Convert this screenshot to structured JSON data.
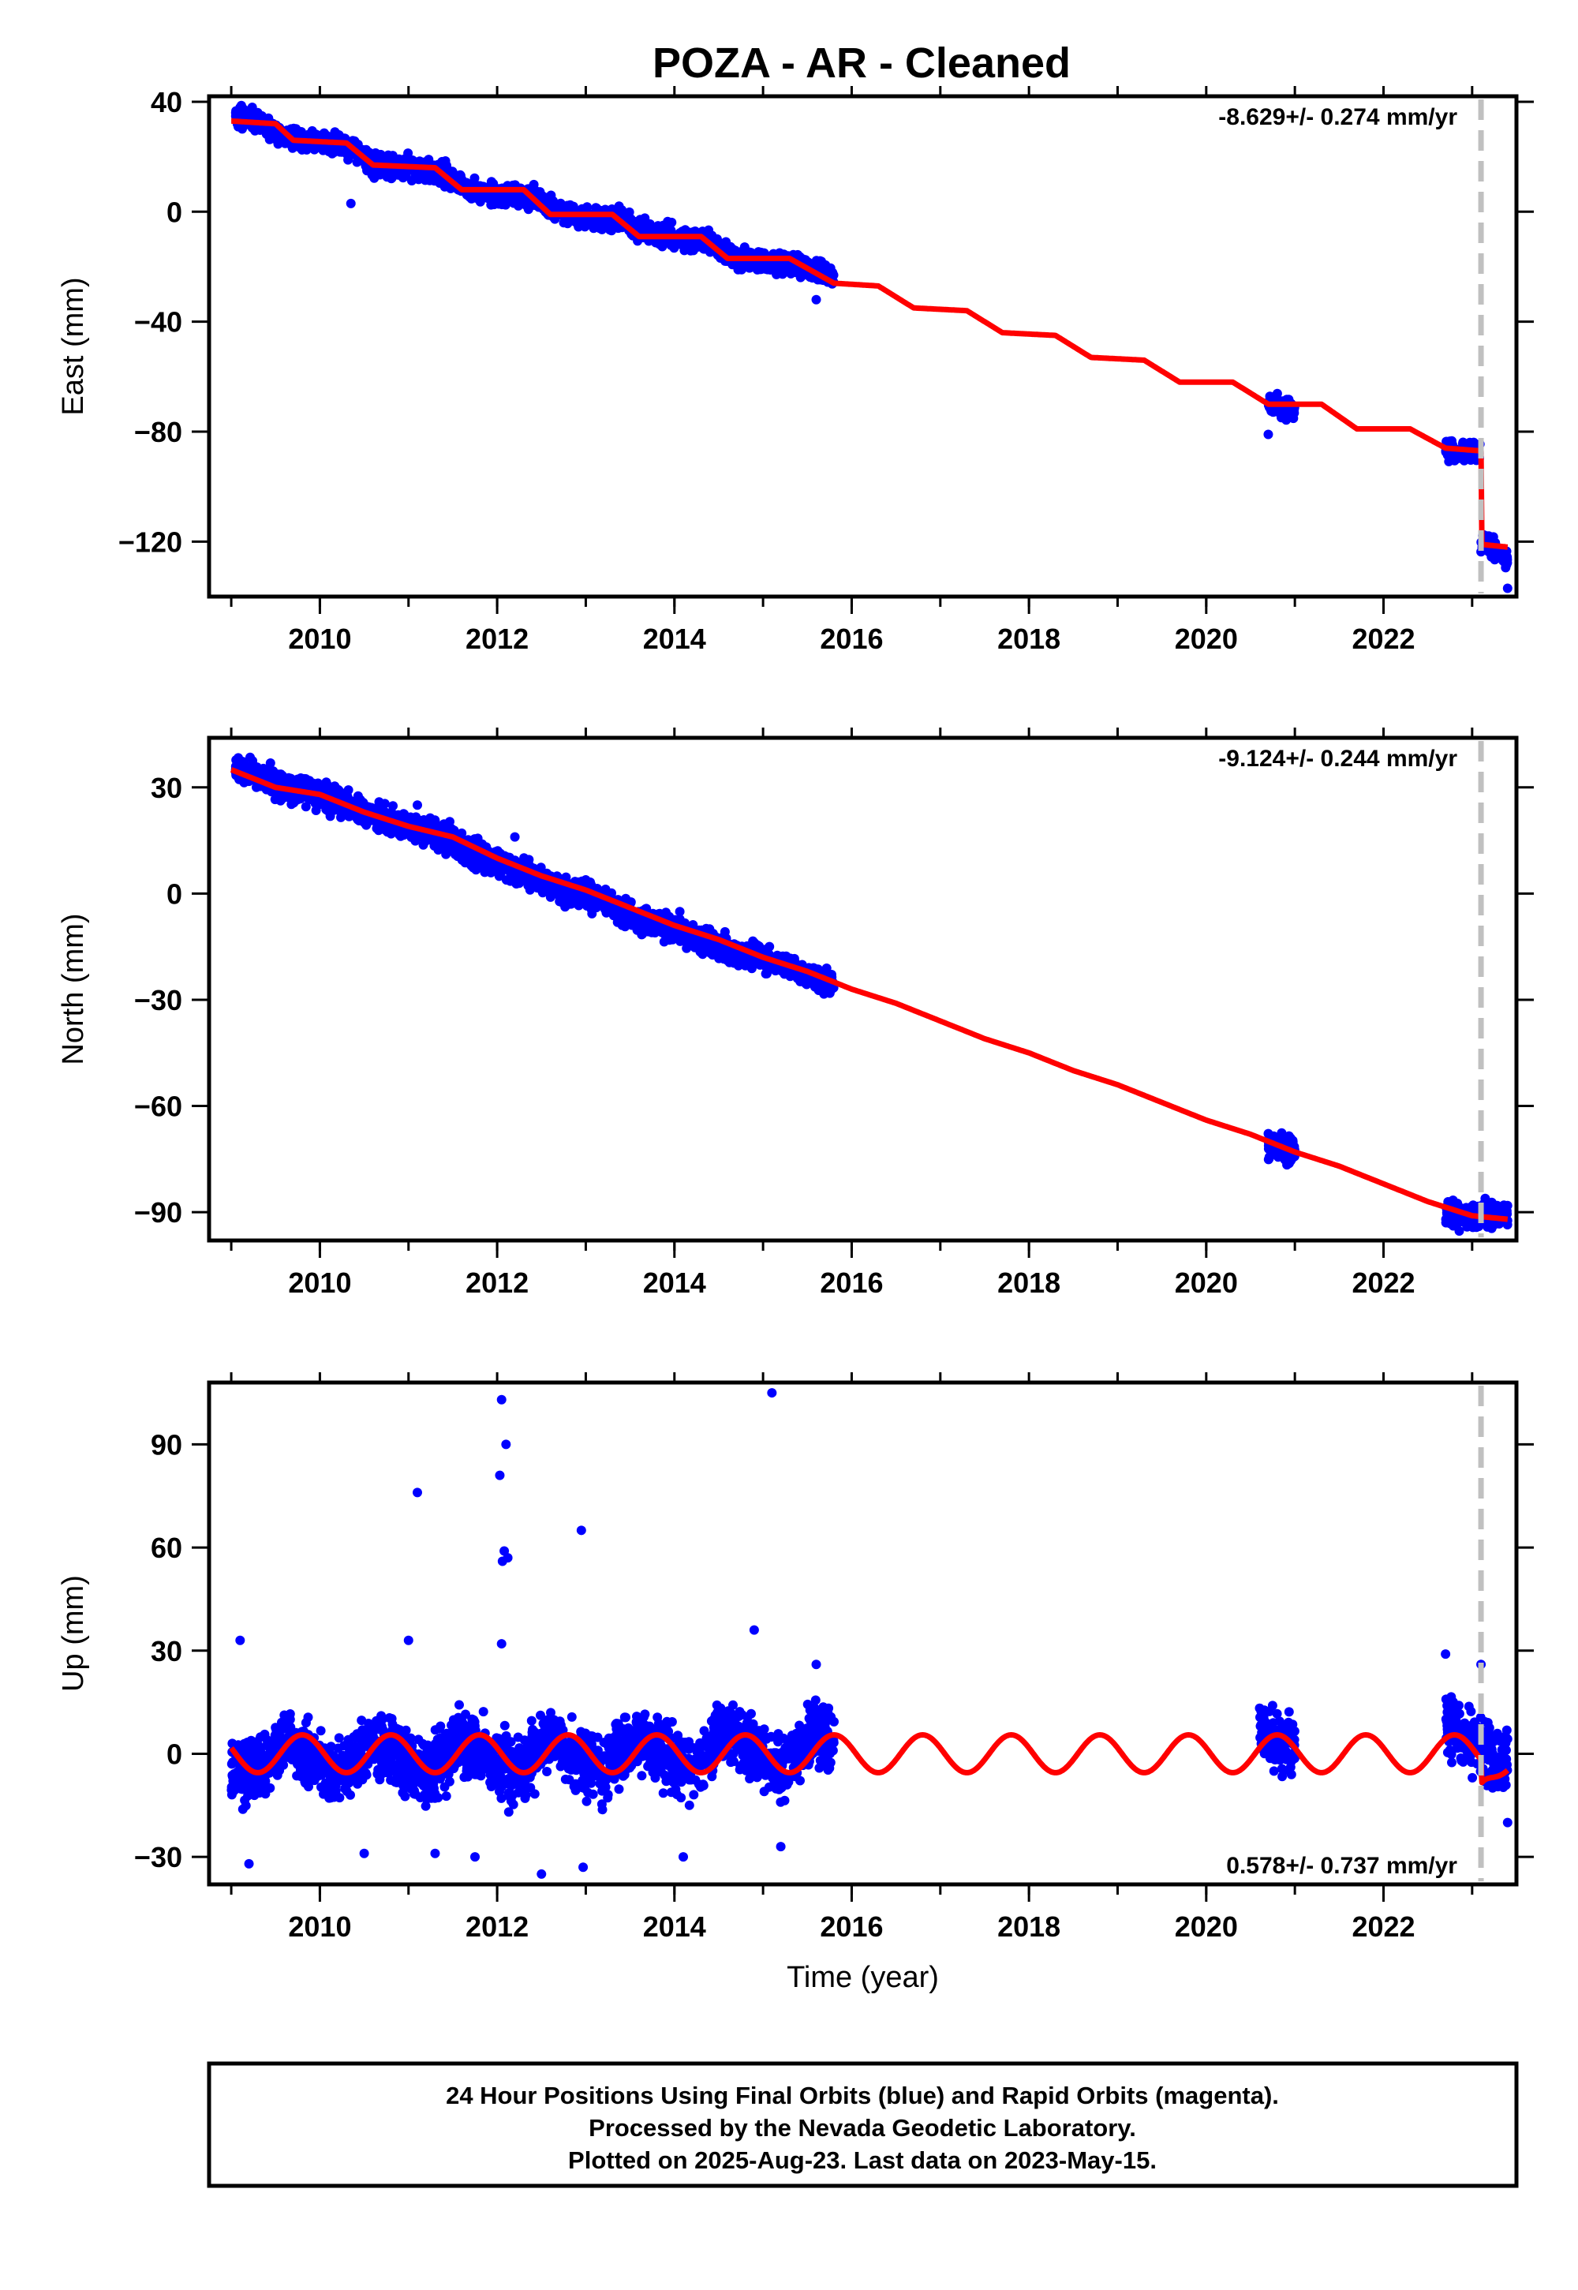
{
  "figure": {
    "title": "POZA  - AR - Cleaned",
    "footer": [
      "24 Hour Positions Using Final Orbits (blue) and Rapid Orbits (magenta).",
      "Processed by the Nevada Geodetic Laboratory.",
      "Plotted on 2025-Aug-23. Last data on 2023-May-15."
    ],
    "colors": {
      "data": "#0000ff",
      "model": "#ff0000",
      "event_line": "#c0c0c0",
      "frame": "#000000"
    }
  },
  "chart_data": [
    {
      "type": "scatter",
      "ylabel": "East (mm)",
      "xlabel": "",
      "xlim": [
        2008.75,
        2023.5
      ],
      "ylim": [
        -140,
        42
      ],
      "xticks": [
        2010,
        2012,
        2014,
        2016,
        2018,
        2020,
        2022
      ],
      "yticks": [
        40,
        0,
        -40,
        -80,
        -120
      ],
      "rate_label": "-8.629+/- 0.274 mm/yr",
      "event_line_x": 2023.1,
      "data_segments": [
        {
          "x": [
            2009.05,
            2009.3,
            2009.6,
            2010.0,
            2010.3,
            2010.6,
            2011.0,
            2011.4,
            2011.7,
            2012.0,
            2012.4,
            2012.7,
            2013.0,
            2013.4,
            2013.7,
            2014.0,
            2014.4,
            2014.7,
            2015.0,
            2015.4,
            2015.8
          ],
          "y": [
            35,
            33,
            27,
            25,
            24,
            17,
            16,
            14,
            8,
            6,
            5,
            0,
            -2,
            -3,
            -8,
            -9,
            -11,
            -17,
            -18,
            -19,
            -24
          ]
        },
        {
          "x": [
            2020.7,
            2020.8,
            2020.9,
            2021.0
          ],
          "y": [
            -70,
            -70,
            -72,
            -72
          ]
        },
        {
          "x": [
            2022.7,
            2022.8,
            2022.9,
            2023.0,
            2023.1
          ],
          "y": [
            -86,
            -88,
            -87,
            -88,
            -88
          ]
        },
        {
          "x": [
            2023.1,
            2023.2,
            2023.3,
            2023.4
          ],
          "y": [
            -120,
            -122,
            -124,
            -126
          ]
        }
      ],
      "outliers": [
        {
          "x": 2010.35,
          "y": 3
        },
        {
          "x": 2015.6,
          "y": -32
        },
        {
          "x": 2020.7,
          "y": -81
        },
        {
          "x": 2023.4,
          "y": -137
        }
      ],
      "model": {
        "x": [
          2009.0,
          2009.5,
          2009.7,
          2010.3,
          2010.6,
          2011.3,
          2011.6,
          2012.3,
          2012.6,
          2013.3,
          2013.6,
          2014.3,
          2014.6,
          2015.3,
          2015.8,
          2016.3,
          2016.7,
          2017.3,
          2017.7,
          2018.3,
          2018.7,
          2019.3,
          2019.7,
          2020.3,
          2020.7,
          2021.3,
          2021.7,
          2022.3,
          2022.7,
          2023.1,
          2023.1,
          2023.4
        ],
        "y": [
          33,
          32,
          26,
          25,
          17,
          16,
          8,
          8,
          -1,
          -1,
          -9,
          -9,
          -17,
          -17,
          -26,
          -27,
          -35,
          -36,
          -44,
          -45,
          -53,
          -54,
          -62,
          -62,
          -70,
          -70,
          -79,
          -79,
          -86,
          -87,
          -121,
          -122
        ]
      }
    },
    {
      "type": "scatter",
      "ylabel": "North (mm)",
      "xlabel": "",
      "xlim": [
        2008.75,
        2023.5
      ],
      "ylim": [
        -98,
        44
      ],
      "xticks": [
        2010,
        2012,
        2014,
        2016,
        2018,
        2020,
        2022
      ],
      "yticks": [
        30,
        0,
        -30,
        -60,
        -90
      ],
      "rate_label": "-9.124+/- 0.244 mm/yr",
      "event_line_x": 2023.1,
      "data_segments": [
        {
          "x": [
            2009.05,
            2009.3,
            2009.6,
            2010.0,
            2010.3,
            2010.6,
            2011.0,
            2011.4,
            2011.7,
            2012.0,
            2012.4,
            2012.7,
            2013.0,
            2013.4,
            2013.7,
            2014.0,
            2014.4,
            2014.7,
            2015.0,
            2015.4,
            2015.8
          ],
          "y": [
            36,
            33,
            30,
            28,
            25,
            22,
            19,
            16,
            11,
            9,
            5,
            1,
            0,
            -5,
            -8,
            -10,
            -14,
            -17,
            -18,
            -22,
            -26
          ]
        },
        {
          "x": [
            2020.7,
            2020.8,
            2020.9,
            2021.0
          ],
          "y": [
            -71,
            -72,
            -73,
            -72
          ]
        },
        {
          "x": [
            2022.7,
            2022.9,
            2023.1,
            2023.3,
            2023.4
          ],
          "y": [
            -90,
            -91,
            -90,
            -91,
            -92
          ]
        }
      ],
      "outliers": [
        {
          "x": 2011.1,
          "y": 25
        },
        {
          "x": 2012.2,
          "y": 16
        }
      ],
      "model": {
        "x": [
          2009.0,
          2009.5,
          2010.0,
          2010.5,
          2011.0,
          2011.5,
          2012.0,
          2012.5,
          2013.0,
          2013.5,
          2014.0,
          2014.5,
          2015.0,
          2015.5,
          2016.0,
          2016.5,
          2017.0,
          2017.5,
          2018.0,
          2018.5,
          2019.0,
          2019.5,
          2020.0,
          2020.5,
          2021.0,
          2021.5,
          2022.0,
          2022.5,
          2023.0,
          2023.4
        ],
        "y": [
          35,
          30,
          28,
          23,
          19,
          16,
          10,
          5,
          1,
          -4,
          -9,
          -13,
          -18,
          -22,
          -27,
          -31,
          -36,
          -41,
          -45,
          -50,
          -54,
          -59,
          -64,
          -68,
          -73,
          -77,
          -82,
          -87,
          -91,
          -92
        ]
      }
    },
    {
      "type": "scatter",
      "ylabel": "Up (mm)",
      "xlabel": "Time (year)",
      "xlim": [
        2008.75,
        2023.5
      ],
      "ylim": [
        -38,
        108
      ],
      "xticks": [
        2010,
        2012,
        2014,
        2016,
        2018,
        2020,
        2022
      ],
      "yticks": [
        90,
        60,
        30,
        0,
        -30
      ],
      "rate_label": "0.578+/- 0.737 mm/yr",
      "event_line_x": 2023.1,
      "data_segments": [
        {
          "x": [
            2009.0,
            2009.3,
            2009.6,
            2009.9,
            2010.2,
            2010.6,
            2010.9,
            2011.2,
            2011.6,
            2011.9,
            2012.2,
            2012.6,
            2012.9,
            2013.2,
            2013.6,
            2013.9,
            2014.2,
            2014.6,
            2014.9,
            2015.2,
            2015.6,
            2015.8
          ],
          "y": [
            -5,
            -6,
            4,
            -2,
            -6,
            4,
            -2,
            -5,
            5,
            -1,
            -6,
            5,
            -1,
            -4,
            5,
            0,
            -5,
            7,
            1,
            -4,
            7,
            3
          ]
        },
        {
          "x": [
            2020.6,
            2020.8,
            2021.0
          ],
          "y": [
            8,
            4,
            1
          ]
        },
        {
          "x": [
            2022.7,
            2022.9,
            2023.1,
            2023.3,
            2023.4
          ],
          "y": [
            10,
            5,
            2,
            -2,
            -1
          ]
        }
      ],
      "outliers": [
        {
          "x": 2009.1,
          "y": 33
        },
        {
          "x": 2009.2,
          "y": -32
        },
        {
          "x": 2010.5,
          "y": -29
        },
        {
          "x": 2011.0,
          "y": 33
        },
        {
          "x": 2011.1,
          "y": 76
        },
        {
          "x": 2011.3,
          "y": -29
        },
        {
          "x": 2011.75,
          "y": -30
        },
        {
          "x": 2012.05,
          "y": 103
        },
        {
          "x": 2012.1,
          "y": 90
        },
        {
          "x": 2012.03,
          "y": 81
        },
        {
          "x": 2012.08,
          "y": 59
        },
        {
          "x": 2012.12,
          "y": 57
        },
        {
          "x": 2012.06,
          "y": 56
        },
        {
          "x": 2012.05,
          "y": 32
        },
        {
          "x": 2012.5,
          "y": -35
        },
        {
          "x": 2012.95,
          "y": 65
        },
        {
          "x": 2012.97,
          "y": -33
        },
        {
          "x": 2014.1,
          "y": -30
        },
        {
          "x": 2014.9,
          "y": 36
        },
        {
          "x": 2015.1,
          "y": 105
        },
        {
          "x": 2015.2,
          "y": -27
        },
        {
          "x": 2015.6,
          "y": 26
        },
        {
          "x": 2022.7,
          "y": 29
        },
        {
          "x": 2023.1,
          "y": 26
        },
        {
          "x": 2023.4,
          "y": -20
        }
      ],
      "model": {
        "seasonal": {
          "amplitude": 5.5,
          "phase_year": 2009.55,
          "offset": 0.0
        }
      }
    }
  ]
}
